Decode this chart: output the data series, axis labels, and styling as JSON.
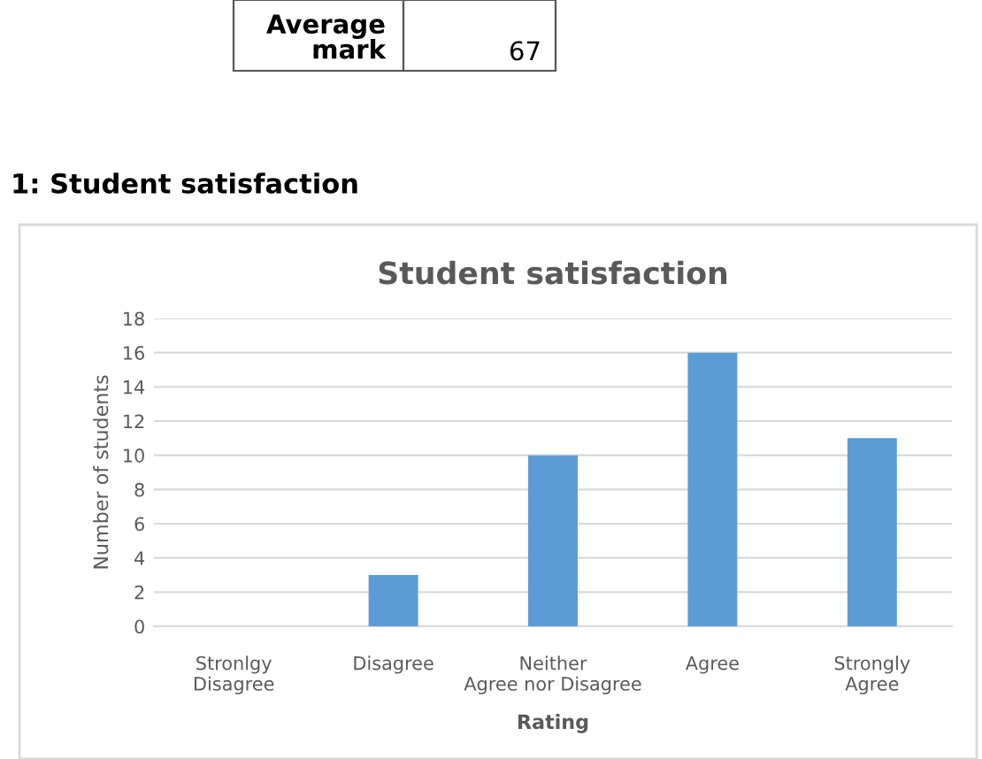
{
  "chart_data": {
    "type": "bar",
    "title": "Student satisfaction",
    "xlabel": "Rating",
    "ylabel": "Number of students",
    "categories": [
      "Stronlgy Disagree",
      "Disagree",
      "Neither Agree nor Disagree",
      "Agree",
      "Strongly Agree"
    ],
    "values": [
      0,
      3,
      10,
      16,
      11
    ],
    "color": "#5b9bd5",
    "ylim": [
      0,
      18
    ],
    "yticks": [
      0,
      2,
      4,
      6,
      8,
      10,
      12,
      14,
      16,
      18
    ],
    "grid": "y",
    "annotations": [
      "Average mark",
      "67",
      "1: Student satisfaction"
    ]
  }
}
